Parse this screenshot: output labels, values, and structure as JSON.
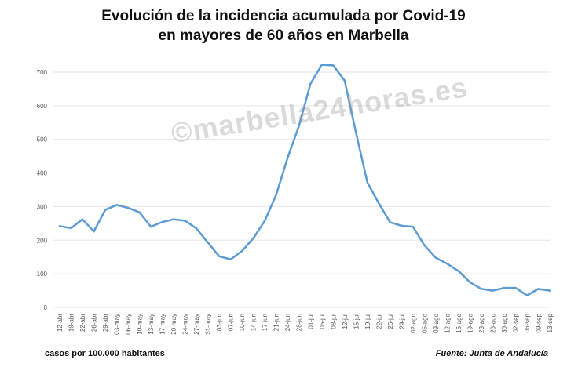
{
  "title_line1": "Evolución de la incidencia acumulada por Covid-19",
  "title_line2": "en mayores de 60 años en Marbella",
  "footer_left": "casos por 100.000 habitantes",
  "footer_right": "Fuente: Junta de Andalucía",
  "watermark_text": "©marbella24horas.es",
  "colors": {
    "line": "#5b9bd5",
    "grid": "#e6e6e6",
    "axis_text": "#555555"
  },
  "chart_data": {
    "type": "line",
    "title": "Evolución de la incidencia acumulada por Covid-19 en mayores de 60 años en Marbella",
    "xlabel": "",
    "ylabel": "",
    "ylim": [
      0,
      700
    ],
    "yticks": [
      0,
      100,
      200,
      300,
      400,
      500,
      600,
      700
    ],
    "grid": true,
    "categories": [
      "12-abr",
      "19-abr",
      "22-abr",
      "26-abr",
      "29-abr",
      "03-may",
      "06-may",
      "10-may",
      "13-may",
      "17-may",
      "20-may",
      "24-may",
      "27-may",
      "31-may",
      "03-jun",
      "07-jun",
      "10-jun",
      "14-jun",
      "17-jun",
      "21-jun",
      "24-jun",
      "28-jun",
      "01-jul",
      "05-jul",
      "08-jul",
      "12-jul",
      "15-jul",
      "19-jul",
      "22-jul",
      "26-jul",
      "29-jul",
      "02-ago",
      "05-ago",
      "09-ago",
      "12-ago",
      "16-ago",
      "19-ago",
      "23-ago",
      "26-ago",
      "30-ago",
      "02-sep",
      "06-sep",
      "09-sep",
      "13-sep"
    ],
    "series": [
      {
        "values": [
          242,
          236,
          262,
          226,
          290,
          305,
          296,
          283,
          240,
          254,
          262,
          258,
          235,
          193,
          152,
          143,
          168,
          206,
          258,
          335,
          445,
          540,
          665,
          722,
          720,
          675,
          520,
          372,
          310,
          253,
          243,
          240,
          185,
          148,
          130,
          108,
          75,
          55,
          50,
          58,
          58,
          36,
          55,
          50
        ]
      }
    ]
  }
}
